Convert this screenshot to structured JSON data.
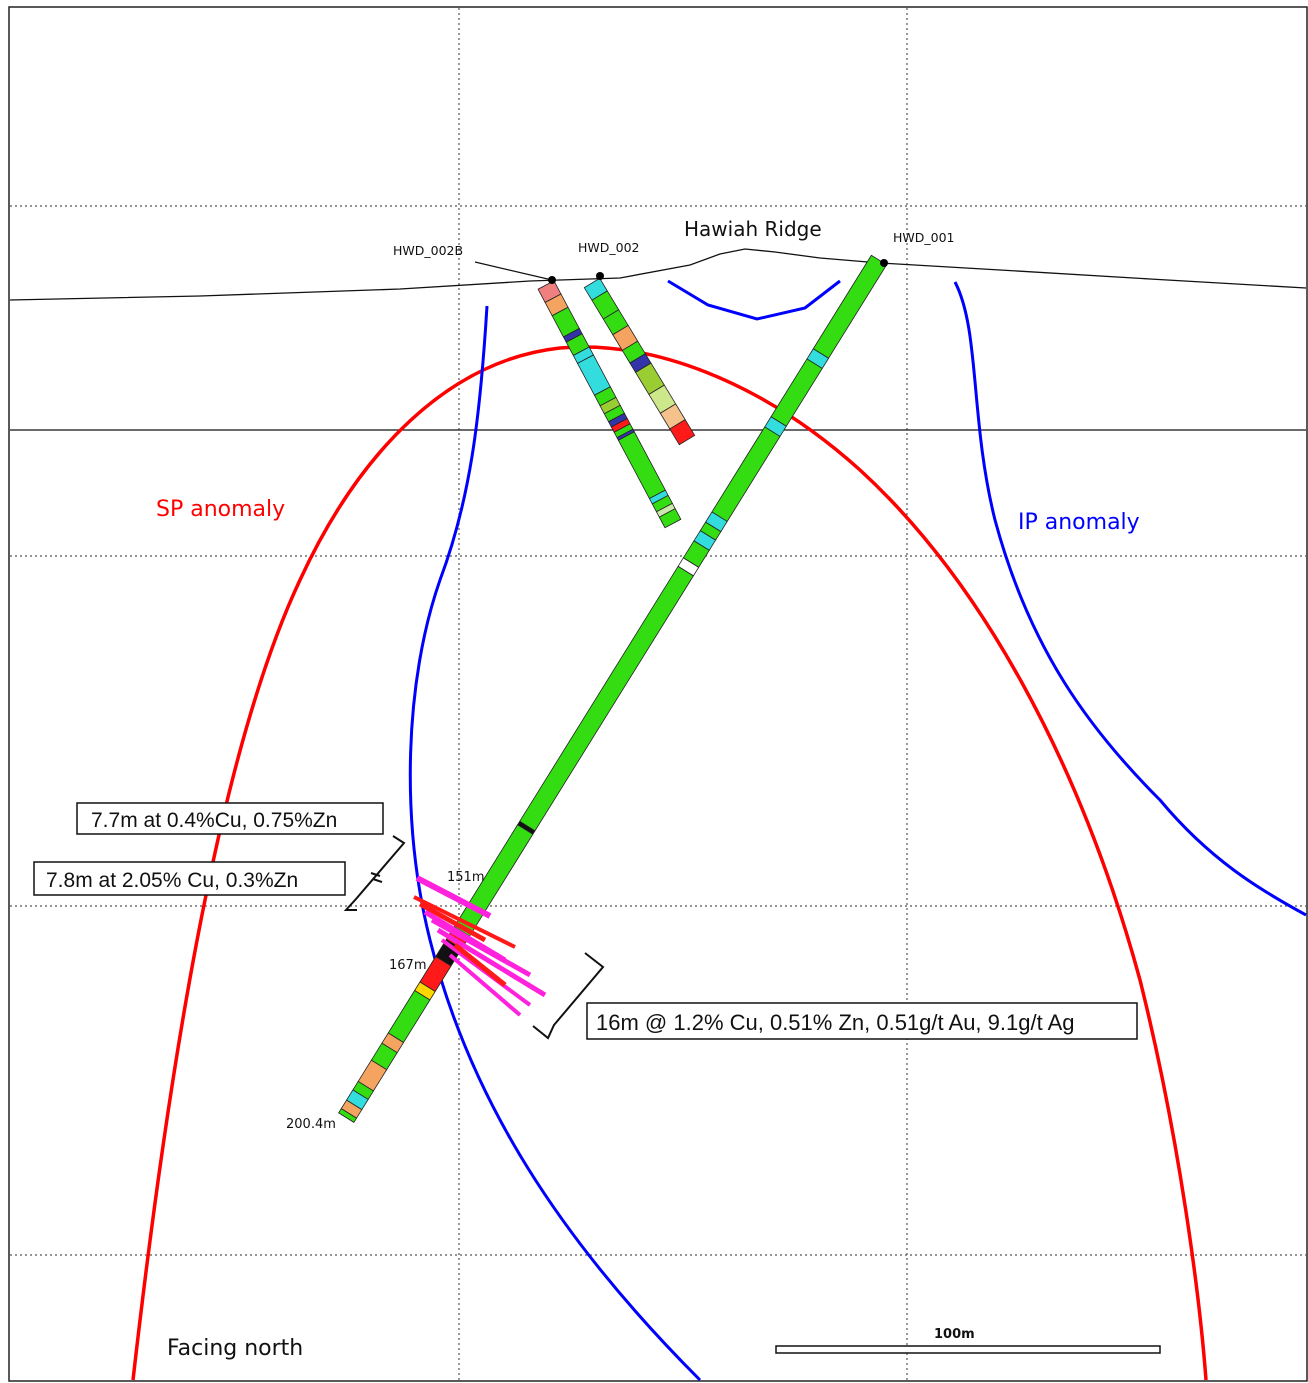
{
  "section": {
    "ridge_label": "Hawiah Ridge",
    "drillholes": {
      "hwd_002b": "HWD_002B",
      "hwd_002": "HWD_002",
      "hwd_001": "HWD_001"
    },
    "anomalies": {
      "sp": "SP anomaly",
      "ip": "IP anomaly"
    },
    "depth_marks": {
      "d151": "151m",
      "d167": "167m",
      "d200": "200.4m"
    },
    "intercepts": {
      "upper": "7.7m at 0.4%Cu, 0.75%Zn",
      "middle": "7.8m at 2.05% Cu, 0.3%Zn",
      "main": "16m @ 1.2% Cu, 0.51% Zn, 0.51g/t Au, 9.1g/t Ag"
    },
    "orientation": "Facing north",
    "scale_bar": "100m",
    "colors": {
      "sp_anomaly": "#ff0000",
      "ip_anomaly": "#0000ff",
      "host_rock": "#33dd11",
      "cyan_unit": "#33dddd",
      "orange_unit": "#f4a460",
      "mineralised": "#ff1a1a",
      "assay_zn": "#ff22dd"
    }
  }
}
